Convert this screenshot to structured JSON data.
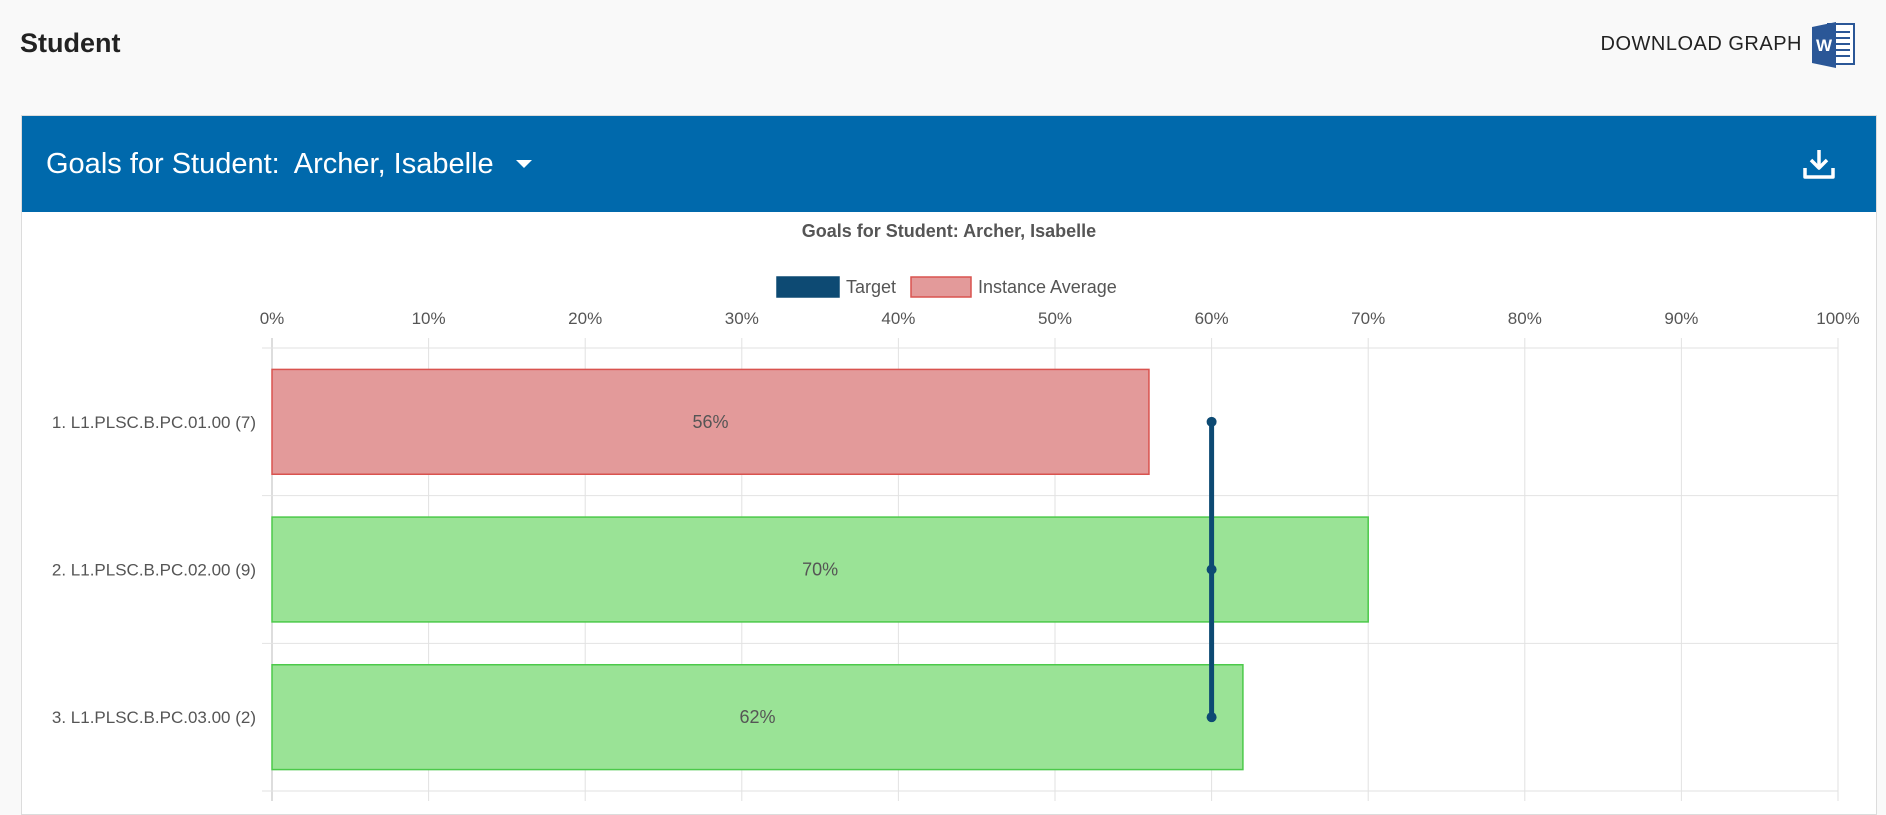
{
  "page": {
    "title": "Student"
  },
  "download": {
    "label": "DOWNLOAD GRAPH",
    "icon": "word-document-icon"
  },
  "header": {
    "prefix": "Goals for Student:",
    "student": "Archer, Isabelle",
    "dropdown_icon": "caret-down-icon",
    "export_icon": "download-icon",
    "background": "#0069ac"
  },
  "chart_data": {
    "type": "bar",
    "orientation": "horizontal",
    "title": "Goals for Student: Archer, Isabelle",
    "legend": [
      {
        "name": "Target",
        "color": "#0d4a73"
      },
      {
        "name": "Instance Average",
        "color": "#e39a9a"
      }
    ],
    "legend_position": "top",
    "xlim": [
      0,
      100
    ],
    "x_tick_values": [
      0,
      10,
      20,
      30,
      40,
      50,
      60,
      70,
      80,
      90,
      100
    ],
    "x_tick_labels": [
      "0%",
      "10%",
      "20%",
      "30%",
      "40%",
      "50%",
      "60%",
      "70%",
      "80%",
      "90%",
      "100%"
    ],
    "x_axis_position": "top",
    "grid": true,
    "categories": [
      "1. L1.PLSC.B.PC.01.00 (7)",
      "2. L1.PLSC.B.PC.02.00 (9)",
      "3. L1.PLSC.B.PC.03.00 (2)"
    ],
    "series": [
      {
        "name": "Instance Average",
        "values": [
          56,
          70,
          62
        ],
        "labels": [
          "56%",
          "70%",
          "62%"
        ],
        "fill_colors": [
          "#e39a9a",
          "#9ae396",
          "#9ae396"
        ],
        "border_colors": [
          "#d9534f",
          "#4cc94a",
          "#4cc94a"
        ]
      },
      {
        "name": "Target",
        "values": [
          60,
          60,
          60
        ],
        "color": "#0d4a73"
      }
    ]
  }
}
